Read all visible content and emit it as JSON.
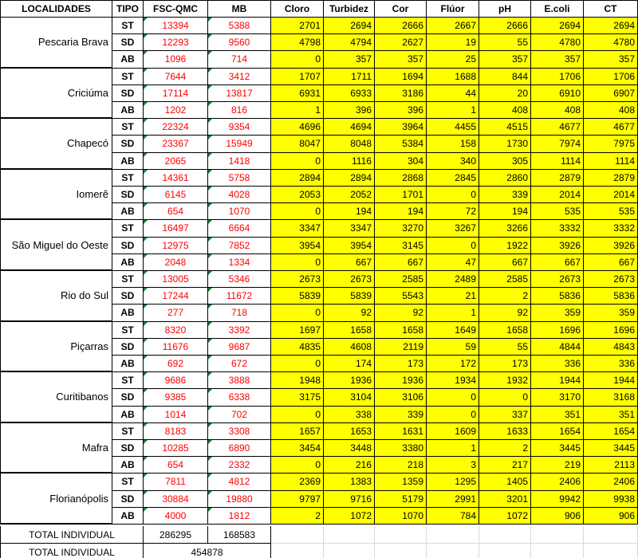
{
  "headers": [
    "LOCALIDADES",
    "TIPO",
    "FSC-QMC",
    "MB",
    "Cloro",
    "Turbidez",
    "Cor",
    "Flúor",
    "pH",
    "E.coli",
    "CT"
  ],
  "groups": [
    {
      "name": "Pescaria Brava",
      "rows": [
        {
          "tipo": "ST",
          "fsc": "13394",
          "mb": "5388",
          "vals": [
            "2701",
            "2694",
            "2666",
            "2667",
            "2666",
            "2694",
            "2694"
          ]
        },
        {
          "tipo": "SD",
          "fsc": "12293",
          "mb": "9560",
          "vals": [
            "4798",
            "4794",
            "2627",
            "19",
            "55",
            "4780",
            "4780"
          ]
        },
        {
          "tipo": "AB",
          "fsc": "1096",
          "mb": "714",
          "vals": [
            "0",
            "357",
            "357",
            "25",
            "357",
            "357",
            "357"
          ]
        }
      ]
    },
    {
      "name": "Criciúma",
      "rows": [
        {
          "tipo": "ST",
          "fsc": "7644",
          "mb": "3412",
          "vals": [
            "1707",
            "1711",
            "1694",
            "1688",
            "844",
            "1706",
            "1706"
          ]
        },
        {
          "tipo": "SD",
          "fsc": "17114",
          "mb": "13817",
          "vals": [
            "6931",
            "6933",
            "3186",
            "44",
            "20",
            "6910",
            "6907"
          ]
        },
        {
          "tipo": "AB",
          "fsc": "1202",
          "mb": "816",
          "vals": [
            "1",
            "396",
            "396",
            "1",
            "408",
            "408",
            "408"
          ]
        }
      ]
    },
    {
      "name": "Chapecó",
      "rows": [
        {
          "tipo": "ST",
          "fsc": "22324",
          "mb": "9354",
          "vals": [
            "4696",
            "4694",
            "3964",
            "4455",
            "4515",
            "4677",
            "4677"
          ]
        },
        {
          "tipo": "SD",
          "fsc": "23367",
          "mb": "15949",
          "vals": [
            "8047",
            "8048",
            "5384",
            "158",
            "1730",
            "7974",
            "7975"
          ]
        },
        {
          "tipo": "AB",
          "fsc": "2065",
          "mb": "1418",
          "vals": [
            "0",
            "1116",
            "304",
            "340",
            "305",
            "1114",
            "1114"
          ]
        }
      ]
    },
    {
      "name": "Iomerê",
      "rows": [
        {
          "tipo": "ST",
          "fsc": "14361",
          "mb": "5758",
          "vals": [
            "2894",
            "2894",
            "2868",
            "2845",
            "2860",
            "2879",
            "2879"
          ]
        },
        {
          "tipo": "SD",
          "fsc": "6145",
          "mb": "4028",
          "vals": [
            "2053",
            "2052",
            "1701",
            "0",
            "339",
            "2014",
            "2014"
          ]
        },
        {
          "tipo": "AB",
          "fsc": "654",
          "mb": "1070",
          "vals": [
            "0",
            "194",
            "194",
            "72",
            "194",
            "535",
            "535"
          ]
        }
      ]
    },
    {
      "name": "São Miguel do Oeste",
      "rows": [
        {
          "tipo": "ST",
          "fsc": "16497",
          "mb": "6664",
          "vals": [
            "3347",
            "3347",
            "3270",
            "3267",
            "3266",
            "3332",
            "3332"
          ]
        },
        {
          "tipo": "SD",
          "fsc": "12975",
          "mb": "7852",
          "vals": [
            "3954",
            "3954",
            "3145",
            "0",
            "1922",
            "3926",
            "3926"
          ]
        },
        {
          "tipo": "AB",
          "fsc": "2048",
          "mb": "1334",
          "vals": [
            "0",
            "667",
            "667",
            "47",
            "667",
            "667",
            "667"
          ]
        }
      ]
    },
    {
      "name": "Rio do Sul",
      "rows": [
        {
          "tipo": "ST",
          "fsc": "13005",
          "mb": "5346",
          "vals": [
            "2673",
            "2673",
            "2585",
            "2489",
            "2585",
            "2673",
            "2673"
          ]
        },
        {
          "tipo": "SD",
          "fsc": "17244",
          "mb": "11672",
          "vals": [
            "5839",
            "5839",
            "5543",
            "21",
            "2",
            "5836",
            "5836"
          ]
        },
        {
          "tipo": "AB",
          "fsc": "277",
          "mb": "718",
          "vals": [
            "0",
            "92",
            "92",
            "1",
            "92",
            "359",
            "359"
          ]
        }
      ]
    },
    {
      "name": "Piçarras",
      "rows": [
        {
          "tipo": "ST",
          "fsc": "8320",
          "mb": "3392",
          "vals": [
            "1697",
            "1658",
            "1658",
            "1649",
            "1658",
            "1696",
            "1696"
          ]
        },
        {
          "tipo": "SD",
          "fsc": "11676",
          "mb": "9687",
          "vals": [
            "4835",
            "4608",
            "2119",
            "59",
            "55",
            "4844",
            "4843"
          ]
        },
        {
          "tipo": "AB",
          "fsc": "692",
          "mb": "672",
          "vals": [
            "0",
            "174",
            "173",
            "172",
            "173",
            "336",
            "336"
          ]
        }
      ]
    },
    {
      "name": "Curitibanos",
      "rows": [
        {
          "tipo": "ST",
          "fsc": "9686",
          "mb": "3888",
          "vals": [
            "1948",
            "1936",
            "1936",
            "1934",
            "1932",
            "1944",
            "1944"
          ]
        },
        {
          "tipo": "SD",
          "fsc": "9385",
          "mb": "6338",
          "vals": [
            "3175",
            "3104",
            "3106",
            "0",
            "0",
            "3170",
            "3168"
          ]
        },
        {
          "tipo": "AB",
          "fsc": "1014",
          "mb": "702",
          "vals": [
            "0",
            "338",
            "339",
            "0",
            "337",
            "351",
            "351"
          ]
        }
      ]
    },
    {
      "name": "Mafra",
      "rows": [
        {
          "tipo": "ST",
          "fsc": "8183",
          "mb": "3308",
          "vals": [
            "1657",
            "1653",
            "1631",
            "1609",
            "1633",
            "1654",
            "1654"
          ]
        },
        {
          "tipo": "SD",
          "fsc": "10285",
          "mb": "6890",
          "vals": [
            "3454",
            "3448",
            "3380",
            "1",
            "2",
            "3445",
            "3445"
          ]
        },
        {
          "tipo": "AB",
          "fsc": "654",
          "mb": "2332",
          "vals": [
            "0",
            "216",
            "218",
            "3",
            "217",
            "219",
            "2113"
          ]
        }
      ]
    },
    {
      "name": "Florianópolis",
      "rows": [
        {
          "tipo": "ST",
          "fsc": "7811",
          "mb": "4812",
          "vals": [
            "2369",
            "1383",
            "1359",
            "1295",
            "1405",
            "2406",
            "2406"
          ]
        },
        {
          "tipo": "SD",
          "fsc": "30884",
          "mb": "19880",
          "vals": [
            "9797",
            "9716",
            "5179",
            "2991",
            "3201",
            "9942",
            "9938"
          ]
        },
        {
          "tipo": "AB",
          "fsc": "4000",
          "mb": "1812",
          "vals": [
            "2",
            "1072",
            "1070",
            "784",
            "1072",
            "906",
            "906"
          ]
        }
      ]
    }
  ],
  "totals": {
    "row1": {
      "label": "TOTAL INDIVIDUAL",
      "fsc": "286295",
      "mb": "168583"
    },
    "row2": {
      "label": "TOTAL INDIVIDUAL",
      "value": "454878"
    }
  },
  "colors": {
    "highlight": "#ffff00",
    "value_text": "#ff0000",
    "border": "#000000",
    "gridline": "#d9d9d9",
    "selection": "#217346"
  }
}
